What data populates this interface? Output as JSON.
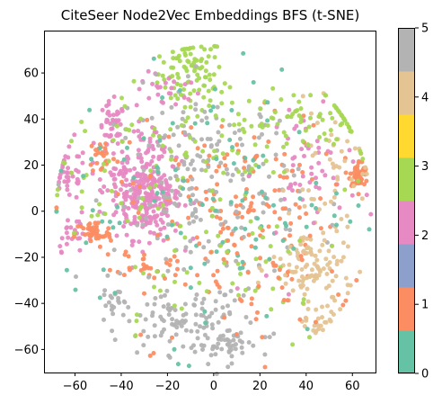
{
  "chart_data": {
    "type": "scatter",
    "title": "CiteSeer Node2Vec Embeddings BFS (t-SNE)",
    "xlabel": "",
    "ylabel": "",
    "xlim": [
      -73,
      70
    ],
    "ylim": [
      -70,
      78
    ],
    "xticks": [
      -60,
      -40,
      -20,
      0,
      20,
      40,
      60
    ],
    "xtick_labels": [
      "−60",
      "−40",
      "−20",
      "0",
      "20",
      "40",
      "60"
    ],
    "yticks": [
      -60,
      -40,
      -20,
      0,
      20,
      40,
      60
    ],
    "ytick_labels": [
      "−60",
      "−40",
      "−20",
      "0",
      "20",
      "40",
      "60"
    ],
    "grid": false,
    "colormap": "Set2",
    "colorbar": {
      "range": [
        0,
        5
      ],
      "ticks": [
        0,
        1,
        2,
        3,
        4,
        5
      ],
      "tick_labels": [
        "0",
        "1",
        "2",
        "3",
        "4",
        "5"
      ],
      "colors": [
        "#66c2a5",
        "#fc8d62",
        "#8da0cb",
        "#e78ac3",
        "#a6d854",
        "#ffd92f",
        "#e5c494",
        "#b3b3b3"
      ]
    },
    "class_colors": {
      "0": "#66c2a5",
      "1": "#fc8d62",
      "2": "#e78ac3",
      "3": "#a6d854",
      "4": "#e5c494",
      "5": "#b3b3b3"
    },
    "point_groups": [
      {
        "class": 3,
        "center": [
          -10,
          60
        ],
        "spread": [
          7,
          8
        ],
        "count": 90
      },
      {
        "class": 2,
        "center": [
          -20,
          52
        ],
        "spread": [
          7,
          4
        ],
        "count": 25
      },
      {
        "class": 2,
        "center": [
          -28,
          6
        ],
        "spread": [
          7,
          9
        ],
        "count": 240
      },
      {
        "class": 2,
        "center": [
          -63,
          16
        ],
        "spread": [
          4,
          6
        ],
        "count": 40
      },
      {
        "class": 2,
        "center": [
          -44,
          35
        ],
        "spread": [
          3,
          6
        ],
        "count": 45
      },
      {
        "class": 2,
        "center": [
          -38,
          15
        ],
        "spread": [
          5,
          6
        ],
        "count": 50
      },
      {
        "class": 2,
        "center": [
          -60,
          -10
        ],
        "spread": [
          5,
          4
        ],
        "count": 25
      },
      {
        "class": 2,
        "center": [
          -28,
          30
        ],
        "spread": [
          5,
          4
        ],
        "count": 30
      },
      {
        "class": 2,
        "center": [
          40,
          22
        ],
        "spread": [
          8,
          10
        ],
        "count": 35
      },
      {
        "class": 1,
        "center": [
          -52,
          -10
        ],
        "spread": [
          4,
          3
        ],
        "count": 45
      },
      {
        "class": 1,
        "center": [
          -48,
          24
        ],
        "spread": [
          3,
          4
        ],
        "count": 25
      },
      {
        "class": 1,
        "center": [
          63,
          16
        ],
        "spread": [
          2,
          3
        ],
        "count": 55
      },
      {
        "class": 1,
        "center": [
          -30,
          -22
        ],
        "spread": [
          6,
          3
        ],
        "count": 25
      },
      {
        "class": 1,
        "center": [
          8,
          5
        ],
        "spread": [
          22,
          18
        ],
        "count": 140
      },
      {
        "class": 5,
        "center": [
          -10,
          -48
        ],
        "spread": [
          15,
          7
        ],
        "count": 100
      },
      {
        "class": 5,
        "center": [
          5,
          -58
        ],
        "spread": [
          8,
          4
        ],
        "count": 45
      },
      {
        "class": 5,
        "center": [
          -3,
          10
        ],
        "spread": [
          20,
          22
        ],
        "count": 200
      },
      {
        "class": 5,
        "center": [
          -44,
          -40
        ],
        "spread": [
          3,
          5
        ],
        "count": 20
      },
      {
        "class": 4,
        "center": [
          43,
          -25
        ],
        "spread": [
          9,
          10
        ],
        "count": 110
      },
      {
        "class": 4,
        "center": [
          52,
          20
        ],
        "spread": [
          9,
          12
        ],
        "count": 45
      },
      {
        "class": 4,
        "center": [
          45,
          -47
        ],
        "spread": [
          5,
          4
        ],
        "count": 25
      },
      {
        "class": 3,
        "center": [
          10,
          35
        ],
        "spread": [
          28,
          12
        ],
        "count": 90
      },
      {
        "class": 3,
        "center": [
          40,
          40
        ],
        "spread": [
          15,
          6
        ],
        "count": 40
      },
      {
        "class": 3,
        "center": [
          -40,
          15
        ],
        "spread": [
          15,
          15
        ],
        "count": 40
      },
      {
        "class": 0,
        "center": [
          0,
          5
        ],
        "spread": [
          30,
          30
        ],
        "count": 110
      },
      {
        "class": 3,
        "center": [
          0,
          -20
        ],
        "spread": [
          30,
          20
        ],
        "count": 60
      },
      {
        "class": 1,
        "center": [
          15,
          -30
        ],
        "spread": [
          25,
          15
        ],
        "count": 60
      },
      {
        "class": 2,
        "center": [
          45,
          5
        ],
        "spread": [
          20,
          25
        ],
        "count": 20
      }
    ]
  }
}
